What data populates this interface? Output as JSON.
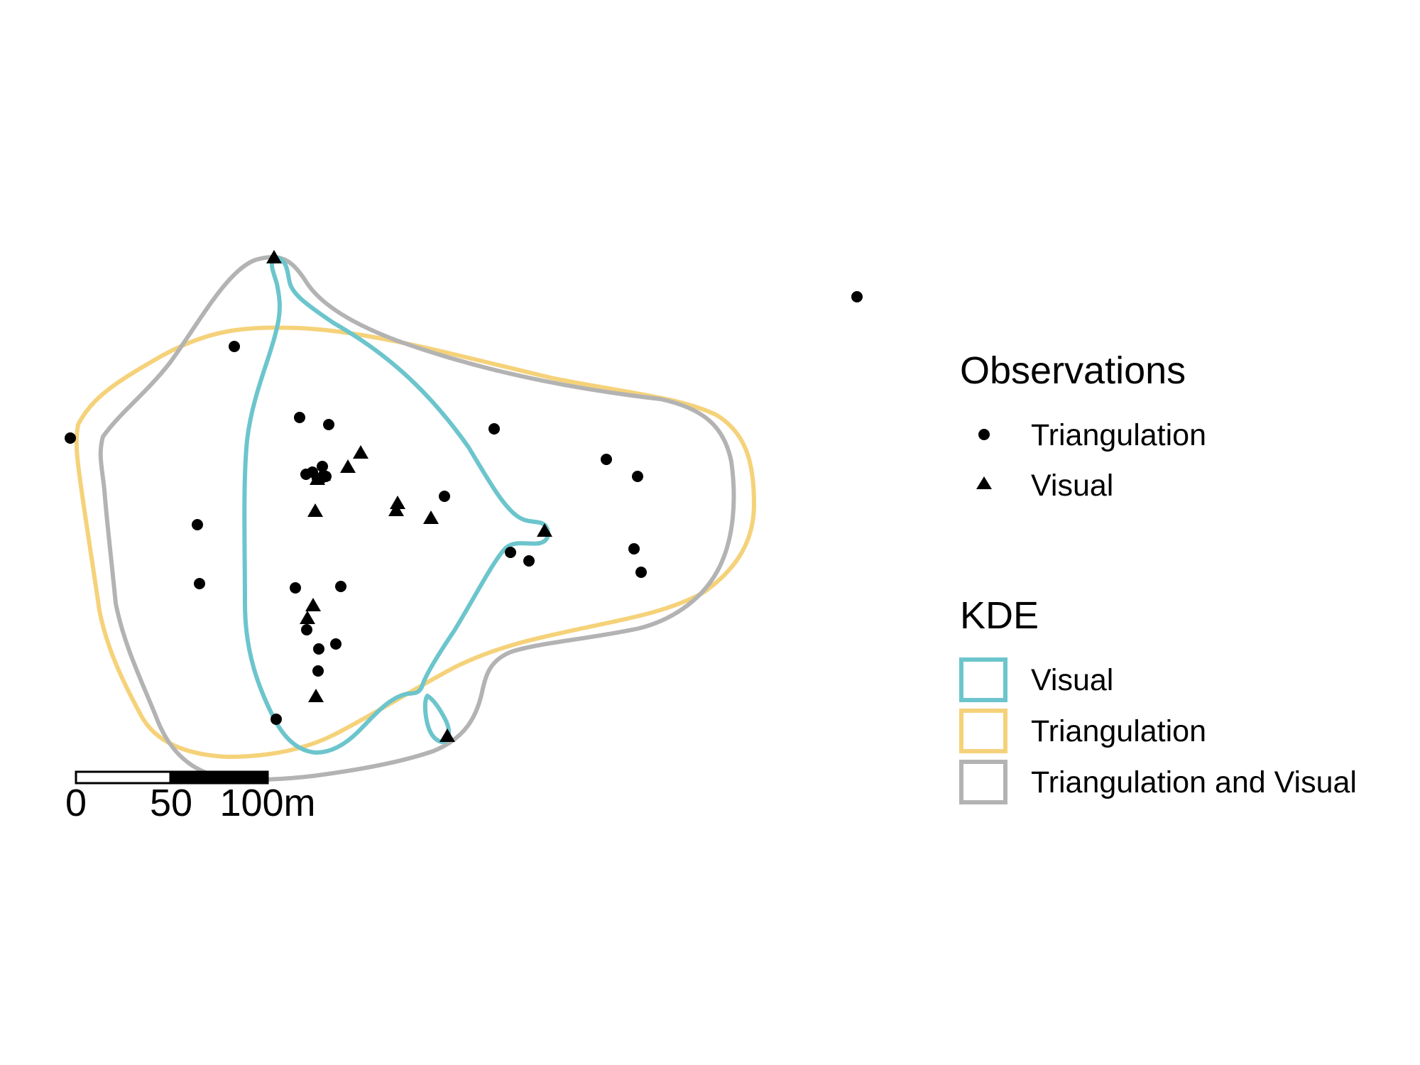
{
  "map": {
    "contours": [
      {
        "key": "visual",
        "color": "#6CC5CC"
      },
      {
        "key": "triangulation",
        "color": "#F5D27A"
      },
      {
        "key": "both",
        "color": "#B3B3B3"
      }
    ],
    "observations": {
      "triangulation": 28,
      "visual": 15
    }
  },
  "scale_bar": {
    "labels": [
      "0",
      "50",
      "100m"
    ]
  },
  "legend": {
    "observations_title": "Observations",
    "observations_items": [
      {
        "label": "Triangulation",
        "shape": "circle"
      },
      {
        "label": "Visual",
        "shape": "triangle"
      }
    ],
    "kde_title": "KDE",
    "kde_items": [
      {
        "label": "Visual",
        "color": "#6CC5CC"
      },
      {
        "label": "Triangulation",
        "color": "#F5D27A"
      },
      {
        "label": "Triangulation and Visual",
        "color": "#B3B3B3"
      }
    ]
  }
}
